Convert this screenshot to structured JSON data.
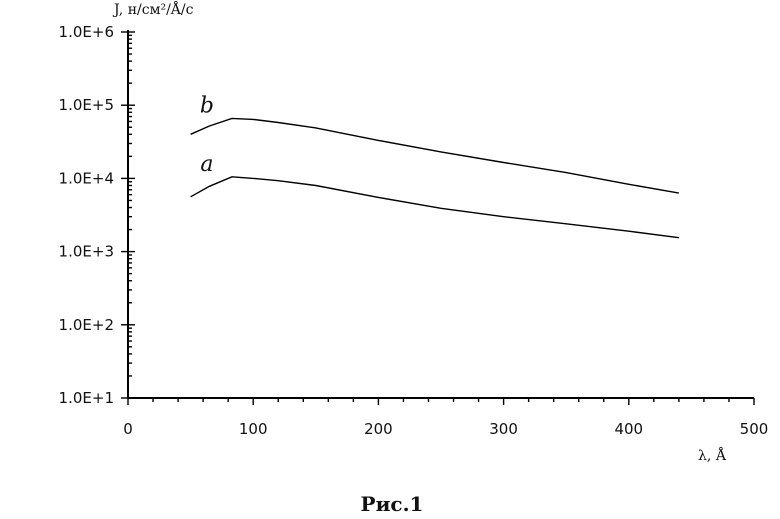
{
  "chart_data": {
    "type": "line",
    "xlabel": "λ, Å",
    "ylabel": "J, н/см²/Å/с",
    "xlim": [
      0,
      500
    ],
    "ylim": [
      10,
      1000000
    ],
    "yscale": "log",
    "xticks": [
      "0",
      "100",
      "200",
      "300",
      "400",
      "500"
    ],
    "yticks": [
      "1.0E+1",
      "1.0E+2",
      "1.0E+3",
      "1.0E+4",
      "1.0E+5",
      "1.0E+6"
    ],
    "grid": false,
    "series": [
      {
        "name": "a",
        "x": [
          50,
          65,
          83,
          100,
          120,
          150,
          200,
          250,
          300,
          350,
          400,
          440
        ],
        "y": [
          5600,
          7800,
          10500,
          10000,
          9300,
          8000,
          5500,
          3900,
          3000,
          2400,
          1900,
          1550
        ]
      },
      {
        "name": "b",
        "x": [
          50,
          65,
          83,
          100,
          120,
          150,
          200,
          250,
          300,
          350,
          400,
          440
        ],
        "y": [
          40000,
          52000,
          66000,
          64000,
          58000,
          49000,
          33000,
          23000,
          16500,
          12000,
          8300,
          6300
        ]
      }
    ],
    "caption": "Рис.1"
  }
}
